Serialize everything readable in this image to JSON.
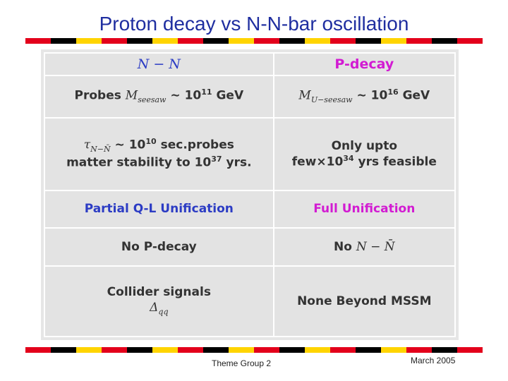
{
  "slide": {
    "title": "Proton decay vs N-N-bar oscillation",
    "footer_center": "Theme Group 2",
    "footer_right": "March 2005"
  },
  "table": {
    "headers": [
      "N − N",
      "P-decay"
    ],
    "rows": [
      {
        "left": {
          "prefix": "Probes ",
          "math": "M",
          "math_sub": "seesaw",
          "mid": " ∼ 10",
          "sup": "11",
          "suffix": " GeV"
        },
        "right": {
          "math": "M",
          "math_sub": "U−seesaw",
          "mid": " ∼ 10",
          "sup": "16",
          "suffix": " GeV"
        }
      },
      {
        "left": {
          "line1_math": "τ",
          "line1_sub": "N−N̄",
          "line1_mid": " ∼ 10",
          "line1_sup": "10",
          "line1_suffix": " sec.probes",
          "line2_pre": "matter stability to 10",
          "line2_sup": "37",
          "line2_suffix": " yrs."
        },
        "right": {
          "line1": "Only upto",
          "line2_pre": "few×10",
          "line2_sup": "34",
          "line2_suffix": " yrs feasible"
        }
      },
      {
        "left": {
          "text": "Partial Q-L Unification"
        },
        "right": {
          "text": "Full Unification"
        }
      },
      {
        "left": {
          "text": "No P-decay"
        },
        "right": {
          "prefix": "No ",
          "math": "N − N̄"
        }
      },
      {
        "left": {
          "line1": "Collider signals",
          "line2_math": "Δ",
          "line2_sub": "qq"
        },
        "right": {
          "text": "None Beyond MSSM"
        }
      }
    ]
  },
  "colors": {
    "title": "#1f2ea0",
    "blue_text": "#2c3cc4",
    "magenta_text": "#d21bd2",
    "stripe_red": "#e3001b",
    "stripe_yellow": "#ffd400",
    "stripe_black": "#000000"
  }
}
